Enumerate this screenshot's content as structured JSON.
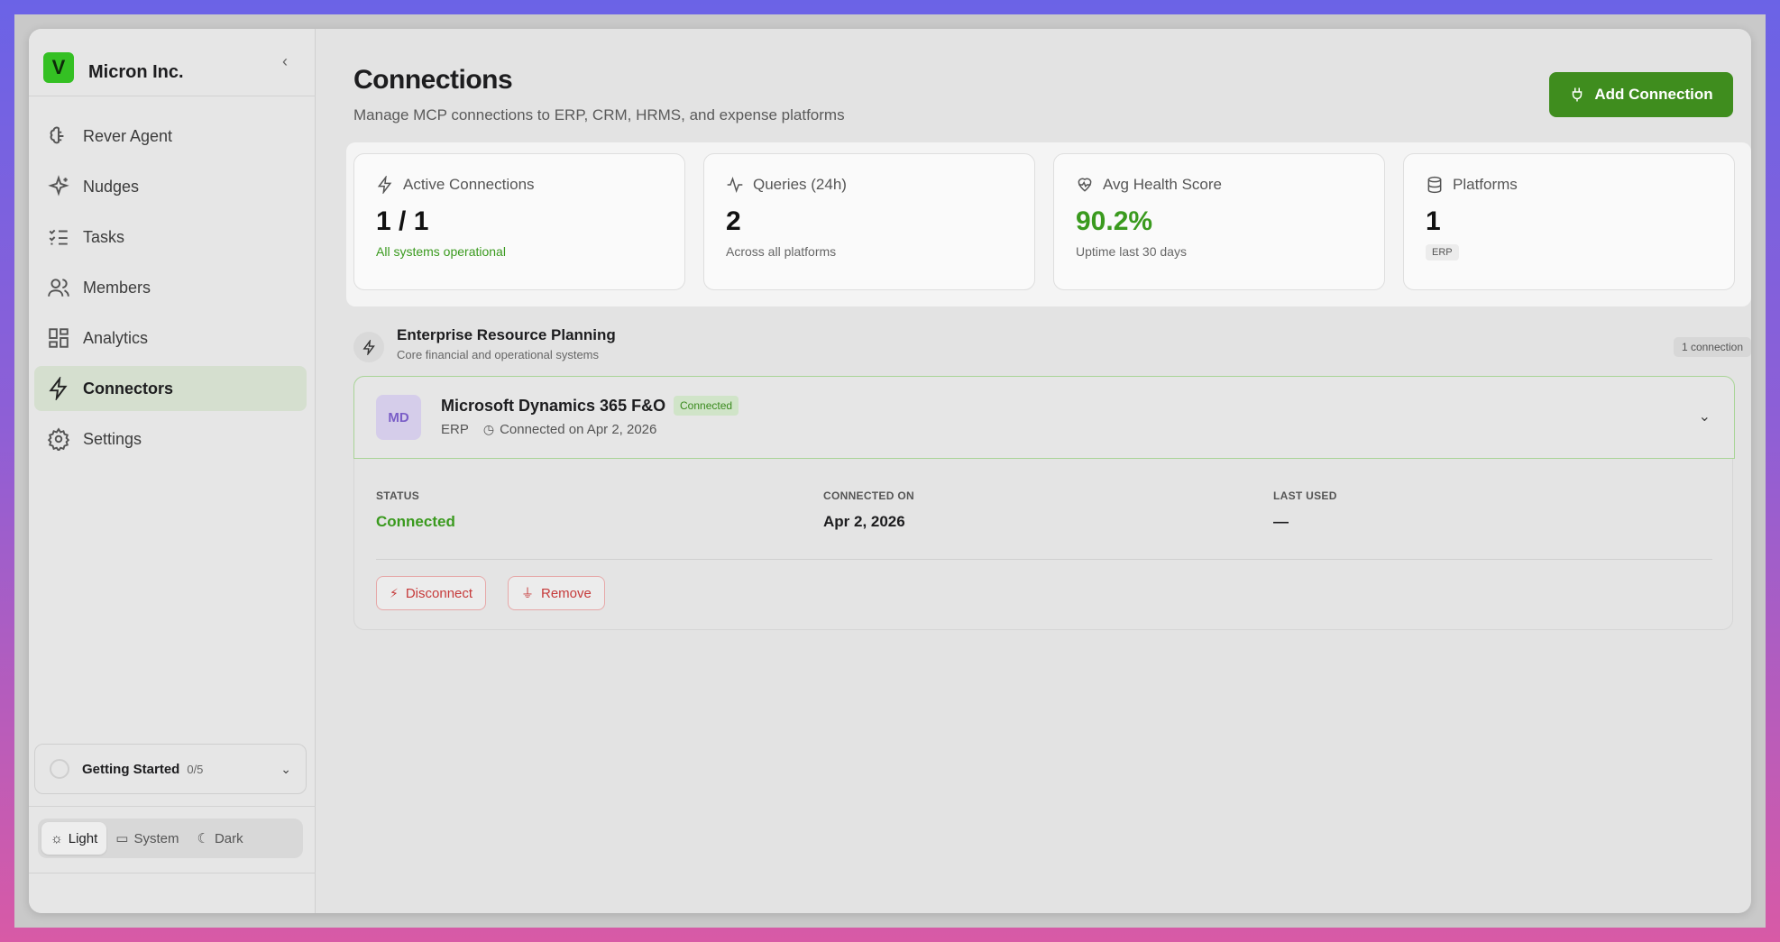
{
  "sidebar": {
    "brand": {
      "logo_letter": "V",
      "name": "Micron Inc."
    },
    "nav": [
      {
        "label": "Rever Agent",
        "icon": "brain-icon",
        "active": false
      },
      {
        "label": "Nudges",
        "icon": "sparkles-icon",
        "active": false
      },
      {
        "label": "Tasks",
        "icon": "list-checks-icon",
        "active": false
      },
      {
        "label": "Members",
        "icon": "users-icon",
        "active": false
      },
      {
        "label": "Analytics",
        "icon": "dashboard-icon",
        "active": false
      },
      {
        "label": "Connectors",
        "icon": "zap-icon",
        "active": true
      },
      {
        "label": "Settings",
        "icon": "gear-icon",
        "active": false
      }
    ],
    "getting_started": {
      "title": "Getting Started",
      "count": "0/5"
    },
    "theme": {
      "light": "Light",
      "system": "System",
      "dark": "Dark",
      "selected": "Light"
    }
  },
  "header": {
    "title": "Connections",
    "subtitle": "Manage MCP connections to ERP, CRM, HRMS, and expense platforms",
    "add_button": "Add Connection"
  },
  "stats": [
    {
      "label": "Active Connections",
      "icon": "zap-icon",
      "value": "1 / 1",
      "sub": "All systems operational"
    },
    {
      "label": "Queries (24h)",
      "icon": "activity-icon",
      "value": "2",
      "sub": "Across all platforms"
    },
    {
      "label": "Avg Health Score",
      "icon": "heart-pulse-icon",
      "value": "90.2%",
      "sub": "Uptime last 30 days"
    },
    {
      "label": "Platforms",
      "icon": "database-icon",
      "value": "1",
      "tag": "ERP"
    }
  ],
  "section": {
    "title": "Enterprise Resource Planning",
    "subtitle": "Core financial and operational systems",
    "count": "1 connection"
  },
  "connection": {
    "initials": "MD",
    "name": "Microsoft Dynamics 365 F&O",
    "badge": "Connected",
    "category": "ERP",
    "connected_text": "Connected on Apr 2, 2026",
    "details": {
      "status_label": "STATUS",
      "status_value": "Connected",
      "connected_label": "CONNECTED ON",
      "connected_value": "Apr 2, 2026",
      "last_used_label": "LAST USED",
      "last_used_value": "—"
    },
    "disconnect_label": "Disconnect",
    "remove_label": "Remove"
  },
  "colors": {
    "accent": "#3f8d1e",
    "success": "#3a9a1e",
    "danger": "#c63a3a",
    "avatar_bg": "#d5cdea"
  }
}
